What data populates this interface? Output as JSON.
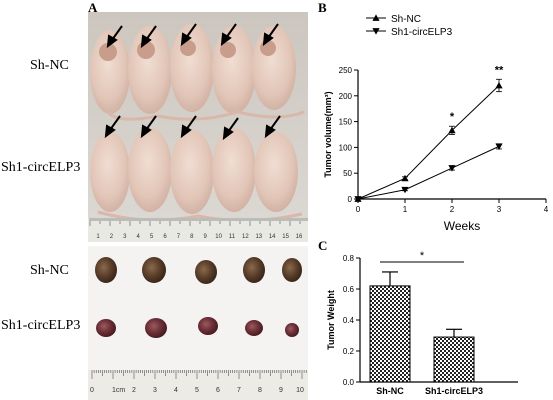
{
  "panel_a": {
    "letter": "A",
    "mice_labels": {
      "top": "Sh-NC",
      "bottom": "Sh1-circELP3"
    },
    "tumor_labels": {
      "top": "Sh-NC",
      "bottom": "Sh1-circELP3"
    },
    "ruler1_ticks": [
      "1",
      "2",
      "3",
      "4",
      "5",
      "6",
      "7",
      "8",
      "9",
      "10",
      "11",
      "12",
      "13",
      "14",
      "15",
      "16"
    ],
    "ruler2_unit": "1cm",
    "ruler2_ticks": [
      "0",
      "2",
      "3",
      "4",
      "5",
      "6",
      "7",
      "8",
      "9",
      "10"
    ]
  },
  "panel_b": {
    "letter": "B"
  },
  "panel_c": {
    "letter": "C"
  },
  "chart_data": [
    {
      "type": "line",
      "ylabel": "Tumor volume(mm³)",
      "xlabel": "Weeks",
      "xlim": [
        0,
        4
      ],
      "ylim": [
        0,
        250
      ],
      "xticks": [
        "0",
        "1",
        "2",
        "3",
        "4"
      ],
      "yticks": [
        "0",
        "50",
        "100",
        "150",
        "200",
        "250"
      ],
      "x": [
        0,
        1,
        2,
        3
      ],
      "series": [
        {
          "name": "Sh-NC",
          "marker": "triangle-up",
          "values": [
            0,
            40,
            133,
            220
          ],
          "errors": [
            0,
            3,
            8,
            12
          ]
        },
        {
          "name": "Sh1-circELP3",
          "marker": "triangle-down",
          "values": [
            0,
            18,
            60,
            102
          ],
          "errors": [
            0,
            2,
            4,
            5
          ]
        }
      ],
      "annotations": [
        {
          "x": 2,
          "text": "*"
        },
        {
          "x": 3,
          "text": "**"
        }
      ],
      "legend": "top-left"
    },
    {
      "type": "bar",
      "ylabel": "Tumor Weight",
      "categories": [
        "Sh-NC",
        "Sh1-circELP3"
      ],
      "values": [
        0.62,
        0.29
      ],
      "errors": [
        0.09,
        0.05
      ],
      "ylim": [
        0,
        0.8
      ],
      "yticks": [
        "0.0",
        "0.2",
        "0.4",
        "0.6",
        "0.8"
      ],
      "significance": "*"
    }
  ]
}
